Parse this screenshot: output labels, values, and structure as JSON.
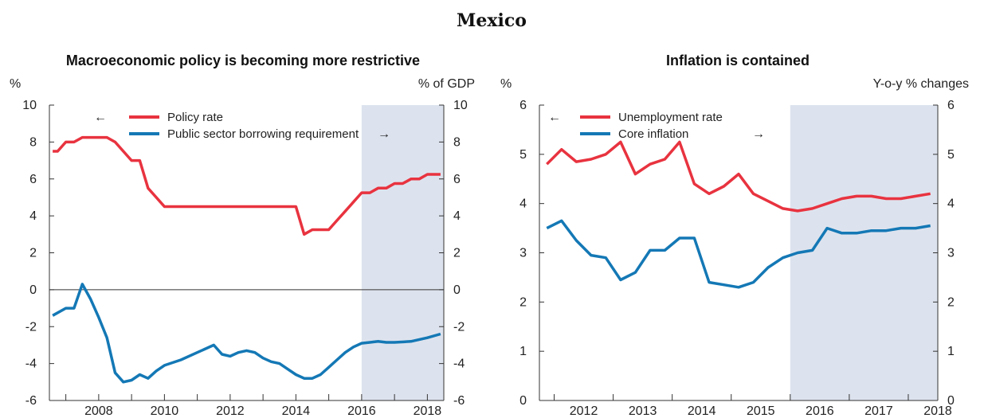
{
  "figure": {
    "title": "Mexico"
  },
  "chart_data": [
    {
      "type": "line",
      "title": "Macroeconomic policy is becoming more restrictive",
      "y_left_unit": "%",
      "y_right_unit": "% of GDP",
      "ylim": [
        -6,
        10
      ],
      "y_ticks": [
        "-6",
        "-4",
        "-2",
        "0",
        "2",
        "4",
        "6",
        "8",
        "10"
      ],
      "x_range": [
        2006.5,
        2018.5
      ],
      "x_ticks": [
        "2008",
        "2010",
        "2012",
        "2014",
        "2016",
        "2018"
      ],
      "zero_line": true,
      "projection_shading_from": 2016.0,
      "legend_position": "top-center",
      "series": [
        {
          "name": "Policy rate",
          "color": "#e8333f",
          "axis": "left",
          "legend_arrow": "←",
          "x": [
            2006.6,
            2006.75,
            2007.0,
            2007.25,
            2007.5,
            2007.75,
            2008.0,
            2008.25,
            2008.5,
            2008.75,
            2009.0,
            2009.25,
            2009.5,
            2009.75,
            2010.0,
            2010.25,
            2011.0,
            2012.0,
            2013.0,
            2013.75,
            2014.0,
            2014.25,
            2014.5,
            2014.75,
            2015.0,
            2015.25,
            2015.5,
            2015.75,
            2016.0,
            2016.25,
            2016.5,
            2016.75,
            2017.0,
            2017.25,
            2017.5,
            2017.75,
            2018.0,
            2018.25,
            2018.4
          ],
          "values": [
            7.5,
            7.5,
            8.0,
            8.0,
            8.25,
            8.25,
            8.25,
            8.25,
            8.0,
            7.5,
            7.0,
            7.0,
            5.5,
            5.0,
            4.5,
            4.5,
            4.5,
            4.5,
            4.5,
            4.5,
            4.5,
            3.0,
            3.25,
            3.25,
            3.25,
            3.75,
            4.25,
            4.75,
            5.25,
            5.25,
            5.5,
            5.5,
            5.75,
            5.75,
            6.0,
            6.0,
            6.25,
            6.25,
            6.25
          ]
        },
        {
          "name": "Public sector borrowing requirement",
          "color": "#1478b5",
          "axis": "right",
          "legend_arrow": "→",
          "x": [
            2006.6,
            2007.0,
            2007.25,
            2007.5,
            2007.75,
            2008.0,
            2008.25,
            2008.5,
            2008.75,
            2009.0,
            2009.25,
            2009.5,
            2009.75,
            2010.0,
            2010.5,
            2011.0,
            2011.5,
            2011.75,
            2012.0,
            2012.25,
            2012.5,
            2012.75,
            2013.0,
            2013.25,
            2013.5,
            2013.75,
            2014.0,
            2014.25,
            2014.5,
            2014.75,
            2015.0,
            2015.25,
            2015.5,
            2015.75,
            2016.0,
            2016.25,
            2016.5,
            2016.75,
            2017.0,
            2017.5,
            2018.0,
            2018.4
          ],
          "values": [
            -1.4,
            -1.0,
            -1.0,
            0.3,
            -0.5,
            -1.5,
            -2.6,
            -4.5,
            -5.0,
            -4.9,
            -4.6,
            -4.8,
            -4.4,
            -4.1,
            -3.8,
            -3.4,
            -3.0,
            -3.5,
            -3.6,
            -3.4,
            -3.3,
            -3.4,
            -3.7,
            -3.9,
            -4.0,
            -4.3,
            -4.6,
            -4.8,
            -4.8,
            -4.6,
            -4.2,
            -3.8,
            -3.4,
            -3.1,
            -2.9,
            -2.85,
            -2.8,
            -2.85,
            -2.85,
            -2.8,
            -2.6,
            -2.4
          ]
        }
      ]
    },
    {
      "type": "line",
      "title": "Inflation is contained",
      "y_left_unit": "%",
      "y_right_unit": "Y-o-y % changes",
      "ylim": [
        0,
        6
      ],
      "y_ticks": [
        "0",
        "1",
        "2",
        "3",
        "4",
        "5",
        "6"
      ],
      "x_range": [
        2011.75,
        2018.5
      ],
      "x_ticks": [
        "2012",
        "2013",
        "2014",
        "2015",
        "2016",
        "2017",
        "2018"
      ],
      "projection_shading_from": 2016.0,
      "legend_position": "top-left",
      "series": [
        {
          "name": "Unemployment rate",
          "color": "#e8333f",
          "axis": "left",
          "legend_arrow": "←",
          "x": [
            2011.875,
            2012.125,
            2012.375,
            2012.625,
            2012.875,
            2013.125,
            2013.375,
            2013.625,
            2013.875,
            2014.125,
            2014.375,
            2014.625,
            2014.875,
            2015.125,
            2015.375,
            2015.625,
            2015.875,
            2016.125,
            2016.375,
            2016.625,
            2016.875,
            2017.125,
            2017.375,
            2017.625,
            2017.875,
            2018.125,
            2018.375
          ],
          "values": [
            4.8,
            5.1,
            4.85,
            4.9,
            5.0,
            5.25,
            4.6,
            4.8,
            4.9,
            5.25,
            4.4,
            4.2,
            4.35,
            4.6,
            4.2,
            4.05,
            3.9,
            3.85,
            3.9,
            4.0,
            4.1,
            4.15,
            4.15,
            4.1,
            4.1,
            4.15,
            4.2
          ]
        },
        {
          "name": "Core inflation",
          "color": "#1478b5",
          "axis": "right",
          "legend_arrow": "→",
          "x": [
            2011.875,
            2012.125,
            2012.375,
            2012.625,
            2012.875,
            2013.125,
            2013.375,
            2013.625,
            2013.875,
            2014.125,
            2014.375,
            2014.625,
            2014.875,
            2015.125,
            2015.375,
            2015.625,
            2015.875,
            2016.125,
            2016.375,
            2016.625,
            2016.875,
            2017.125,
            2017.375,
            2017.625,
            2017.875,
            2018.125,
            2018.375
          ],
          "values": [
            3.5,
            3.65,
            3.25,
            2.95,
            2.9,
            2.45,
            2.6,
            3.05,
            3.05,
            3.3,
            3.3,
            2.4,
            2.35,
            2.3,
            2.4,
            2.7,
            2.9,
            3.0,
            3.05,
            3.5,
            3.4,
            3.4,
            3.45,
            3.45,
            3.5,
            3.5,
            3.55
          ]
        }
      ]
    }
  ]
}
